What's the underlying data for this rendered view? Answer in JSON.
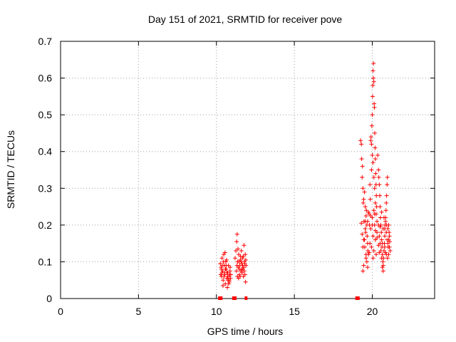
{
  "chart_data": {
    "type": "scatter",
    "title": "Day 151 of 2021, SRMTID for receiver pove",
    "xlabel": "GPS time / hours",
    "ylabel": "SRMTID / TECUs",
    "xlim": [
      0,
      24
    ],
    "ylim": [
      0,
      0.7
    ],
    "xticks": [
      {
        "value": 0,
        "label": "0"
      },
      {
        "value": 5,
        "label": "5"
      },
      {
        "value": 10,
        "label": "10"
      },
      {
        "value": 15,
        "label": "15"
      },
      {
        "value": 20,
        "label": "20"
      }
    ],
    "yticks": [
      {
        "value": 0,
        "label": "0"
      },
      {
        "value": 0.1,
        "label": "0.1"
      },
      {
        "value": 0.2,
        "label": "0.2"
      },
      {
        "value": 0.3,
        "label": "0.3"
      },
      {
        "value": 0.4,
        "label": "0.4"
      },
      {
        "value": 0.5,
        "label": "0.5"
      },
      {
        "value": 0.6,
        "label": "0.6"
      },
      {
        "value": 0.7,
        "label": "0.7"
      }
    ],
    "grid": true,
    "marker": "plus",
    "color": "#ff0000",
    "points": [
      [
        10.25,
        0.095
      ],
      [
        10.3,
        0.085
      ],
      [
        10.33,
        0.06
      ],
      [
        10.36,
        0.11
      ],
      [
        10.4,
        0.075
      ],
      [
        10.43,
        0.05
      ],
      [
        10.47,
        0.12
      ],
      [
        10.5,
        0.09
      ],
      [
        10.53,
        0.065
      ],
      [
        10.57,
        0.04
      ],
      [
        10.6,
        0.1
      ],
      [
        10.63,
        0.08
      ],
      [
        10.67,
        0.055
      ],
      [
        10.7,
        0.03
      ],
      [
        10.73,
        0.07
      ],
      [
        10.77,
        0.09
      ],
      [
        10.8,
        0.06
      ],
      [
        10.83,
        0.045
      ],
      [
        10.87,
        0.075
      ],
      [
        10.9,
        0.055
      ],
      [
        10.35,
        0.07
      ],
      [
        10.45,
        0.1
      ],
      [
        10.55,
        0.125
      ],
      [
        10.65,
        0.105
      ],
      [
        10.75,
        0.05
      ],
      [
        10.85,
        0.065
      ],
      [
        10.28,
        0.065
      ],
      [
        10.38,
        0.09
      ],
      [
        10.48,
        0.06
      ],
      [
        10.58,
        0.08
      ],
      [
        10.68,
        0.07
      ],
      [
        10.78,
        0.04
      ],
      [
        10.88,
        0.085
      ],
      [
        10.42,
        0.035
      ],
      [
        10.62,
        0.09
      ],
      [
        10.72,
        0.06
      ],
      [
        10.52,
        0.07
      ],
      [
        10.82,
        0.05
      ],
      [
        10.32,
        0.08
      ],
      [
        10.92,
        0.065
      ],
      [
        11.2,
        0.11
      ],
      [
        11.25,
        0.13
      ],
      [
        11.3,
        0.155
      ],
      [
        11.33,
        0.175
      ],
      [
        11.36,
        0.1
      ],
      [
        11.4,
        0.085
      ],
      [
        11.43,
        0.12
      ],
      [
        11.47,
        0.065
      ],
      [
        11.5,
        0.09
      ],
      [
        11.53,
        0.105
      ],
      [
        11.57,
        0.075
      ],
      [
        11.6,
        0.13
      ],
      [
        11.63,
        0.095
      ],
      [
        11.67,
        0.11
      ],
      [
        11.7,
        0.08
      ],
      [
        11.73,
        0.06
      ],
      [
        11.77,
        0.145
      ],
      [
        11.8,
        0.1
      ],
      [
        11.83,
        0.065
      ],
      [
        11.87,
        0.045
      ],
      [
        11.9,
        0.09
      ],
      [
        11.35,
        0.06
      ],
      [
        11.45,
        0.1
      ],
      [
        11.55,
        0.115
      ],
      [
        11.65,
        0.07
      ],
      [
        11.75,
        0.085
      ],
      [
        11.85,
        0.12
      ],
      [
        11.28,
        0.075
      ],
      [
        11.38,
        0.135
      ],
      [
        11.48,
        0.08
      ],
      [
        11.58,
        0.1
      ],
      [
        11.68,
        0.09
      ],
      [
        11.78,
        0.075
      ],
      [
        11.88,
        0.105
      ],
      [
        11.42,
        0.055
      ],
      [
        11.62,
        0.08
      ],
      [
        11.72,
        0.115
      ],
      [
        11.52,
        0.06
      ],
      [
        11.82,
        0.095
      ],
      [
        11.32,
        0.09
      ],
      [
        19.25,
        0.43
      ],
      [
        19.3,
        0.42
      ],
      [
        19.32,
        0.38
      ],
      [
        19.35,
        0.33
      ],
      [
        19.37,
        0.36
      ],
      [
        19.4,
        0.3
      ],
      [
        19.42,
        0.26
      ],
      [
        19.45,
        0.27
      ],
      [
        19.47,
        0.21
      ],
      [
        19.5,
        0.16
      ],
      [
        19.52,
        0.14
      ],
      [
        19.55,
        0.19
      ],
      [
        19.57,
        0.18
      ],
      [
        19.6,
        0.225
      ],
      [
        19.62,
        0.24
      ],
      [
        19.65,
        0.2
      ],
      [
        19.67,
        0.17
      ],
      [
        19.7,
        0.15
      ],
      [
        19.72,
        0.13
      ],
      [
        19.75,
        0.12
      ],
      [
        19.3,
        0.205
      ],
      [
        19.35,
        0.175
      ],
      [
        19.4,
        0.14
      ],
      [
        19.45,
        0.16
      ],
      [
        19.5,
        0.29
      ],
      [
        19.55,
        0.25
      ],
      [
        19.6,
        0.11
      ],
      [
        19.65,
        0.1
      ],
      [
        19.7,
        0.085
      ],
      [
        19.4,
        0.075
      ],
      [
        19.45,
        0.09
      ],
      [
        19.8,
        0.23
      ],
      [
        19.82,
        0.2
      ],
      [
        19.85,
        0.31
      ],
      [
        19.87,
        0.27
      ],
      [
        19.9,
        0.43
      ],
      [
        19.92,
        0.44
      ],
      [
        19.95,
        0.35
      ],
      [
        19.97,
        0.47
      ],
      [
        20.0,
        0.5
      ],
      [
        20.02,
        0.55
      ],
      [
        20.03,
        0.58
      ],
      [
        20.05,
        0.62
      ],
      [
        20.07,
        0.6
      ],
      [
        20.08,
        0.64
      ],
      [
        20.1,
        0.59
      ],
      [
        20.12,
        0.53
      ],
      [
        20.14,
        0.52
      ],
      [
        20.16,
        0.45
      ],
      [
        20.18,
        0.41
      ],
      [
        20.2,
        0.38
      ],
      [
        20.22,
        0.34
      ],
      [
        20.24,
        0.31
      ],
      [
        20.26,
        0.28
      ],
      [
        20.28,
        0.25
      ],
      [
        20.3,
        0.21
      ],
      [
        19.95,
        0.42
      ],
      [
        20.0,
        0.39
      ],
      [
        20.05,
        0.37
      ],
      [
        20.1,
        0.33
      ],
      [
        20.15,
        0.3
      ],
      [
        20.2,
        0.26
      ],
      [
        20.25,
        0.23
      ],
      [
        20.3,
        0.18
      ],
      [
        19.85,
        0.15
      ],
      [
        19.9,
        0.19
      ],
      [
        19.95,
        0.14
      ],
      [
        20.0,
        0.22
      ],
      [
        20.05,
        0.17
      ],
      [
        20.1,
        0.13
      ],
      [
        20.15,
        0.2
      ],
      [
        20.2,
        0.16
      ],
      [
        20.35,
        0.39
      ],
      [
        20.4,
        0.35
      ],
      [
        20.42,
        0.33
      ],
      [
        20.45,
        0.31
      ],
      [
        20.48,
        0.28
      ],
      [
        20.5,
        0.25
      ],
      [
        20.52,
        0.22
      ],
      [
        20.55,
        0.2
      ],
      [
        20.58,
        0.18
      ],
      [
        20.6,
        0.16
      ],
      [
        20.62,
        0.14
      ],
      [
        20.65,
        0.12
      ],
      [
        20.68,
        0.1
      ],
      [
        20.7,
        0.09
      ],
      [
        20.72,
        0.11
      ],
      [
        20.75,
        0.13
      ],
      [
        20.78,
        0.15
      ],
      [
        20.8,
        0.17
      ],
      [
        20.82,
        0.2
      ],
      [
        20.85,
        0.22
      ],
      [
        20.88,
        0.24
      ],
      [
        20.9,
        0.26
      ],
      [
        20.92,
        0.28
      ],
      [
        20.95,
        0.31
      ],
      [
        20.97,
        0.33
      ],
      [
        20.4,
        0.2
      ],
      [
        20.45,
        0.17
      ],
      [
        20.5,
        0.15
      ],
      [
        20.55,
        0.13
      ],
      [
        20.6,
        0.11
      ],
      [
        20.65,
        0.085
      ],
      [
        20.7,
        0.075
      ],
      [
        20.75,
        0.22
      ],
      [
        20.8,
        0.19
      ],
      [
        20.85,
        0.21
      ],
      [
        20.9,
        0.18
      ],
      [
        20.95,
        0.16
      ],
      [
        21.0,
        0.15
      ],
      [
        21.02,
        0.14
      ],
      [
        21.05,
        0.16
      ],
      [
        21.08,
        0.18
      ],
      [
        21.1,
        0.14
      ],
      [
        21.12,
        0.155
      ],
      [
        21.15,
        0.13
      ],
      [
        21.05,
        0.12
      ],
      [
        20.98,
        0.11
      ],
      [
        21.1,
        0.17
      ],
      [
        20.92,
        0.2
      ],
      [
        19.55,
        0.21
      ],
      [
        19.75,
        0.235
      ],
      [
        19.9,
        0.225
      ],
      [
        20.0,
        0.2
      ],
      [
        20.1,
        0.24
      ],
      [
        20.2,
        0.185
      ],
      [
        20.3,
        0.165
      ],
      [
        20.4,
        0.145
      ],
      [
        20.5,
        0.195
      ],
      [
        20.6,
        0.235
      ],
      [
        20.7,
        0.19
      ],
      [
        20.8,
        0.14
      ],
      [
        20.9,
        0.12
      ],
      [
        21.0,
        0.19
      ],
      [
        19.6,
        0.12
      ],
      [
        19.8,
        0.125
      ],
      [
        20.05,
        0.11
      ],
      [
        20.25,
        0.12
      ],
      [
        20.45,
        0.125
      ],
      [
        20.65,
        0.15
      ],
      [
        20.85,
        0.125
      ],
      [
        21.05,
        0.2
      ],
      [
        19.7,
        0.21
      ],
      [
        20.15,
        0.23
      ]
    ],
    "ground_marks_x": [
      10.2,
      10.3,
      11.1,
      11.2,
      11.9,
      19.0,
      19.1
    ]
  }
}
